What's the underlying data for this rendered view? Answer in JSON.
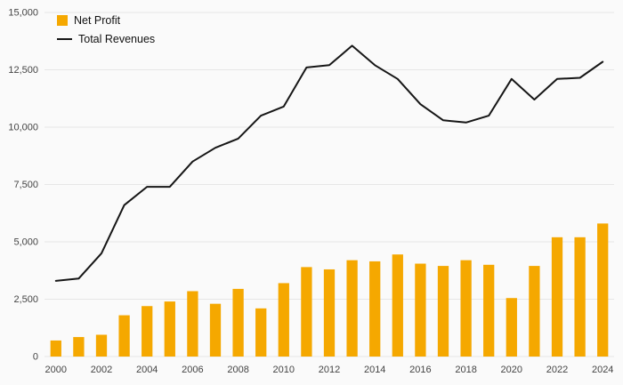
{
  "chart_data": {
    "type": "combo",
    "x": [
      2000,
      2001,
      2002,
      2003,
      2004,
      2005,
      2006,
      2007,
      2008,
      2009,
      2010,
      2011,
      2012,
      2013,
      2014,
      2015,
      2016,
      2017,
      2018,
      2019,
      2020,
      2021,
      2022,
      2023,
      2024
    ],
    "series": [
      {
        "name": "Net Profit",
        "type": "bar",
        "color": "#f5a800",
        "values": [
          700,
          850,
          950,
          1800,
          2200,
          2400,
          2850,
          2300,
          2950,
          2100,
          3200,
          3900,
          3800,
          4200,
          4150,
          4450,
          4050,
          3950,
          4200,
          4000,
          2550,
          3950,
          5200,
          5200,
          5800
        ]
      },
      {
        "name": "Total Revenues",
        "type": "line",
        "color": "#161616",
        "values": [
          3300,
          3400,
          4500,
          6600,
          7400,
          7400,
          8500,
          9100,
          9500,
          10500,
          10900,
          12600,
          12700,
          13550,
          12700,
          12100,
          11000,
          10300,
          10200,
          10500,
          12100,
          11200,
          12100,
          12150,
          12850
        ]
      }
    ],
    "title": "",
    "xlabel": "",
    "ylabel": "",
    "ylim": [
      0,
      15000
    ],
    "yticks": [
      0,
      2500,
      5000,
      7500,
      10000,
      12500,
      15000
    ],
    "xtick_step": 2,
    "grid": true,
    "grid_color": "#e6e6e6",
    "legend_position": "top-left",
    "background": "#fafafa"
  }
}
